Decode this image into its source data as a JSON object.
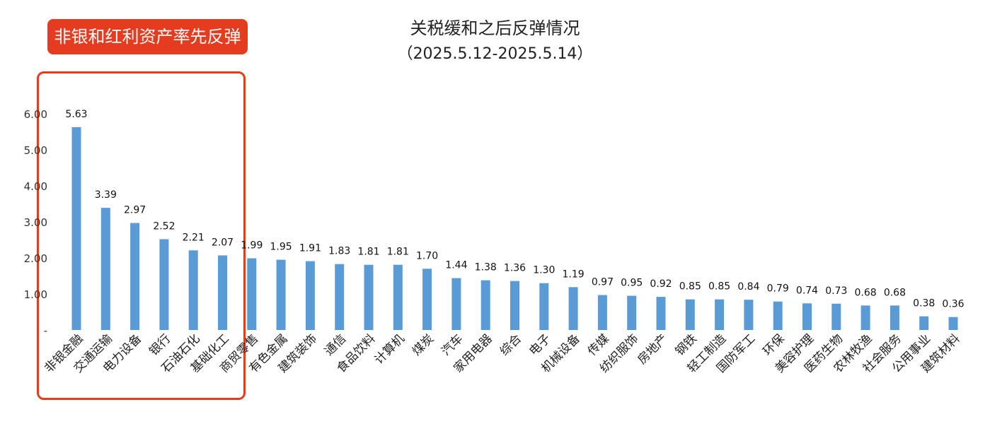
{
  "chart_data": {
    "type": "bar",
    "title": "关税缓和之后反弹情况",
    "subtitle": "（2025.5.12-2025.5.14）",
    "annotation": "非银和红利资产率先反弹",
    "categories": [
      "非银金融",
      "交通运输",
      "电力设备",
      "银行",
      "石油石化",
      "基础化工",
      "商贸零售",
      "有色金属",
      "建筑装饰",
      "通信",
      "食品饮料",
      "计算机",
      "煤炭",
      "汽车",
      "家用电器",
      "综合",
      "电子",
      "机械设备",
      "传媒",
      "纺织服饰",
      "房地产",
      "钢铁",
      "轻工制造",
      "国防军工",
      "环保",
      "美容护理",
      "医药生物",
      "农林牧渔",
      "社会服务",
      "公用事业",
      "建筑材料"
    ],
    "values": [
      5.63,
      3.39,
      2.97,
      2.52,
      2.21,
      2.07,
      1.99,
      1.95,
      1.91,
      1.83,
      1.81,
      1.81,
      1.7,
      1.44,
      1.38,
      1.36,
      1.3,
      1.19,
      0.97,
      0.95,
      0.92,
      0.85,
      0.85,
      0.84,
      0.79,
      0.74,
      0.73,
      0.68,
      0.68,
      0.38,
      0.36
    ],
    "data_labels": [
      "5.63",
      "3.39",
      "2.97",
      "2.52",
      "2.21",
      "2.07",
      "1.99",
      "1.95",
      "1.91",
      "1.83",
      "1.81",
      "1.81",
      "1.70",
      "1.44",
      "1.38",
      "1.36",
      "1.30",
      "1.19",
      "0.97",
      "0.95",
      "0.92",
      "0.85",
      "0.85",
      "0.84",
      "0.79",
      "0.74",
      "0.73",
      "0.68",
      "0.68",
      "0.38",
      "0.36"
    ],
    "y_ticks": [
      "6.00",
      "5.00",
      "4.00",
      "3.00",
      "2.00",
      "1.00",
      "-"
    ],
    "y_tick_values": [
      6,
      5,
      4,
      3,
      2,
      1,
      0
    ],
    "ylim": [
      0,
      6
    ],
    "grid": false,
    "legend": "none",
    "bar_color": "#5b9bd5",
    "highlight_color": "#e53b1f"
  }
}
